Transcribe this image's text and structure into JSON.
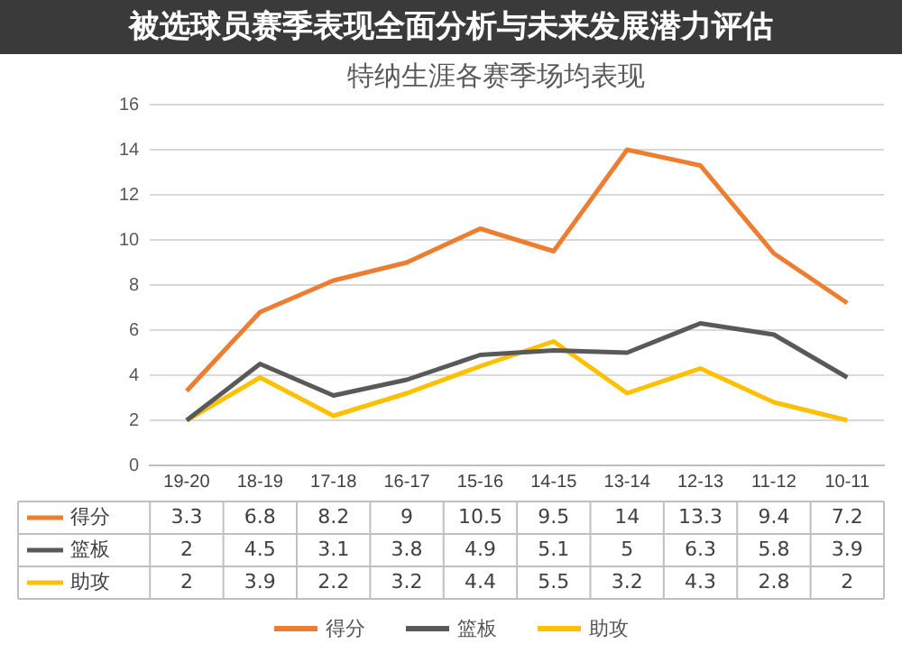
{
  "chart_data": {
    "type": "line",
    "title": "特纳生涯各赛季场均表现",
    "annotations": [
      "被选球员赛季表现全面分析与未来发展潜力评估"
    ],
    "categories": [
      "19-20",
      "18-19",
      "17-18",
      "16-17",
      "15-16",
      "14-15",
      "13-14",
      "12-13",
      "11-12",
      "10-11"
    ],
    "series": [
      {
        "name": "得分",
        "color": "#ed7d31",
        "values": [
          3.3,
          6.8,
          8.2,
          9,
          10.5,
          9.5,
          14,
          13.3,
          9.4,
          7.2
        ]
      },
      {
        "name": "篮板",
        "color": "#595959",
        "values": [
          2,
          4.5,
          3.1,
          3.8,
          4.9,
          5.1,
          5,
          6.3,
          5.8,
          3.9
        ]
      },
      {
        "name": "助攻",
        "color": "#ffc000",
        "values": [
          2,
          3.9,
          2.2,
          3.2,
          4.4,
          5.5,
          3.2,
          4.3,
          2.8,
          2
        ]
      }
    ],
    "ylim": [
      0,
      16
    ],
    "yticks": [
      0,
      2,
      4,
      6,
      8,
      10,
      12,
      14,
      16
    ],
    "grid": "y",
    "legend": "bottom",
    "data_labels": true,
    "marker": "none",
    "line_style": "solid"
  }
}
